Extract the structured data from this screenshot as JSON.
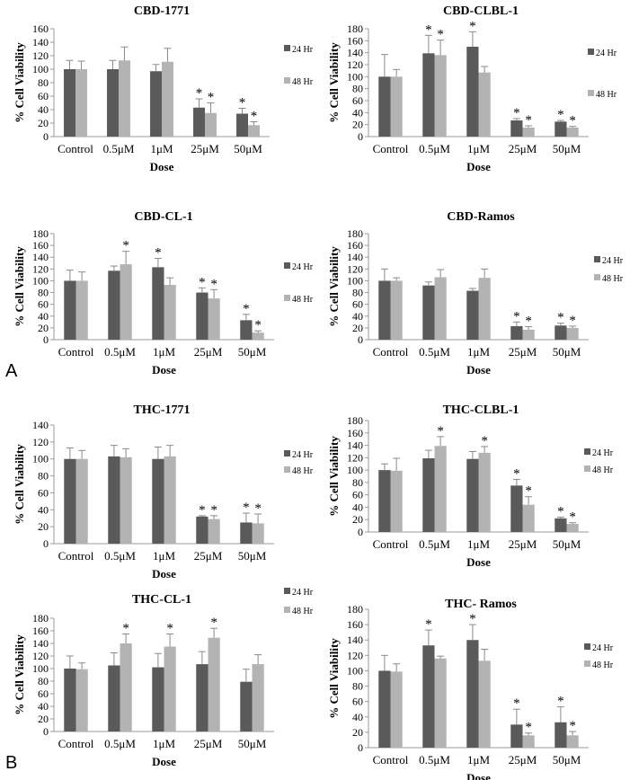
{
  "panels": {
    "a": "A",
    "b": "B"
  },
  "colors": {
    "hr24": "#5a5a5a",
    "hr48": "#b3b3b3",
    "axis": "#9a9a9a",
    "error": "#8a8a8a"
  },
  "chart_data": [
    {
      "type": "bar",
      "title": "CBD-1771",
      "categories": [
        "Control",
        "0.5μM",
        "1μM",
        "25μM",
        "50μM"
      ],
      "ylim": [
        0,
        160
      ],
      "yticks": [
        0,
        20,
        40,
        60,
        80,
        100,
        120,
        140,
        160
      ],
      "xlabel": "Dose",
      "ylabel": "% Cell Viability",
      "legend_position": "right",
      "series": [
        {
          "name": "24 Hr",
          "values": [
            100,
            100,
            97,
            43,
            34
          ],
          "errors": [
            13,
            13,
            10,
            13,
            8
          ],
          "significant": [
            false,
            false,
            false,
            true,
            true
          ]
        },
        {
          "name": "48 Hr",
          "values": [
            100,
            113,
            111,
            35,
            17
          ],
          "errors": [
            12,
            20,
            20,
            15,
            5
          ],
          "significant": [
            false,
            false,
            false,
            true,
            true
          ]
        }
      ]
    },
    {
      "type": "bar",
      "title": "CBD-CLBL-1",
      "categories": [
        "Control",
        "0.5μM",
        "1μM",
        "25μM",
        "50μM"
      ],
      "ylim": [
        0,
        180
      ],
      "yticks": [
        0,
        20,
        40,
        60,
        80,
        100,
        120,
        140,
        160,
        180
      ],
      "xlabel": "Dose",
      "ylabel": "% Cell Viability",
      "legend_position": "right",
      "series": [
        {
          "name": "24 Hr",
          "values": [
            100,
            139,
            150,
            27,
            25
          ],
          "errors": [
            37,
            30,
            25,
            3,
            2
          ],
          "significant": [
            false,
            true,
            true,
            true,
            true
          ]
        },
        {
          "name": "48 Hr",
          "values": [
            100,
            136,
            107,
            15,
            15
          ],
          "errors": [
            12,
            25,
            10,
            3,
            2
          ],
          "significant": [
            false,
            true,
            false,
            true,
            true
          ]
        }
      ]
    },
    {
      "type": "bar",
      "title": "CBD-CL-1",
      "categories": [
        "Control",
        "0.5μM",
        "1μM",
        "25μM",
        "50μM"
      ],
      "ylim": [
        0,
        180
      ],
      "yticks": [
        0,
        20,
        40,
        60,
        80,
        100,
        120,
        140,
        160,
        180
      ],
      "xlabel": "Dose",
      "ylabel": "% Cell Viability",
      "legend_position": "right",
      "series": [
        {
          "name": "24 Hr",
          "values": [
            100,
            117,
            123,
            80,
            33
          ],
          "errors": [
            18,
            8,
            15,
            8,
            10
          ],
          "significant": [
            false,
            false,
            true,
            true,
            true
          ]
        },
        {
          "name": "48 Hr",
          "values": [
            100,
            128,
            93,
            70,
            12
          ],
          "errors": [
            15,
            22,
            12,
            15,
            3
          ],
          "significant": [
            false,
            true,
            false,
            true,
            true
          ]
        }
      ]
    },
    {
      "type": "bar",
      "title": "CBD-Ramos",
      "categories": [
        "Control",
        "0.5μM",
        "1μM",
        "25μM",
        "50μM"
      ],
      "ylim": [
        0,
        180
      ],
      "yticks": [
        0,
        20,
        40,
        60,
        80,
        100,
        120,
        140,
        160,
        180
      ],
      "xlabel": "Dose",
      "ylabel": "% Cell Viability",
      "legend_position": "right",
      "series": [
        {
          "name": "24 Hr",
          "values": [
            100,
            92,
            83,
            23,
            24
          ],
          "errors": [
            20,
            6,
            4,
            7,
            4
          ],
          "significant": [
            false,
            false,
            false,
            true,
            true
          ]
        },
        {
          "name": "48 Hr",
          "values": [
            100,
            106,
            105,
            17,
            20
          ],
          "errors": [
            5,
            13,
            15,
            5,
            3
          ],
          "significant": [
            false,
            false,
            false,
            true,
            true
          ]
        }
      ]
    },
    {
      "type": "bar",
      "title": "THC-1771",
      "categories": [
        "Control",
        "0.5μM",
        "1μM",
        "25μM",
        "50μM"
      ],
      "ylim": [
        0,
        140
      ],
      "yticks": [
        0,
        20,
        40,
        60,
        80,
        100,
        120,
        140
      ],
      "xlabel": "Dose",
      "ylabel": "% Cell Viability",
      "legend_position": "right",
      "series": [
        {
          "name": "24 Hr",
          "values": [
            100,
            103,
            100,
            32,
            25
          ],
          "errors": [
            13,
            13,
            14,
            1,
            11
          ],
          "significant": [
            false,
            false,
            false,
            true,
            true
          ]
        },
        {
          "name": "48 Hr",
          "values": [
            100,
            102,
            103,
            29,
            24
          ],
          "errors": [
            10,
            10,
            13,
            4,
            11
          ],
          "significant": [
            false,
            false,
            false,
            true,
            true
          ]
        }
      ]
    },
    {
      "type": "bar",
      "title": "THC-CLBL-1",
      "categories": [
        "Control",
        "0.5μM",
        "1μM",
        "25μM",
        "50μM"
      ],
      "ylim": [
        0,
        180
      ],
      "yticks": [
        0,
        20,
        40,
        60,
        80,
        100,
        120,
        140,
        160,
        180
      ],
      "xlabel": "Dose",
      "ylabel": "% Cell Viability",
      "legend_position": "right",
      "series": [
        {
          "name": "24 Hr",
          "values": [
            100,
            119,
            118,
            75,
            22
          ],
          "errors": [
            10,
            13,
            12,
            10,
            2
          ],
          "significant": [
            false,
            false,
            false,
            true,
            true
          ]
        },
        {
          "name": "48 Hr",
          "values": [
            99,
            139,
            128,
            44,
            13
          ],
          "errors": [
            20,
            15,
            10,
            13,
            2
          ],
          "significant": [
            false,
            true,
            true,
            true,
            true
          ]
        }
      ]
    },
    {
      "type": "bar",
      "title": "THC-CL-1",
      "categories": [
        "Control",
        "0.5μM",
        "1μM",
        "25μM",
        "50μM"
      ],
      "ylim": [
        0,
        180
      ],
      "yticks": [
        0,
        20,
        40,
        60,
        80,
        100,
        120,
        140,
        160,
        180
      ],
      "xlabel": "Dose",
      "ylabel": "% Cell Viability",
      "legend_position": "right",
      "series": [
        {
          "name": "24 Hr",
          "values": [
            100,
            105,
            102,
            107,
            79
          ],
          "errors": [
            20,
            20,
            22,
            20,
            20
          ],
          "significant": [
            false,
            false,
            false,
            false,
            false
          ]
        },
        {
          "name": "48 Hr",
          "values": [
            99,
            140,
            135,
            149,
            107
          ],
          "errors": [
            10,
            15,
            20,
            15,
            15
          ],
          "significant": [
            false,
            true,
            true,
            true,
            false
          ]
        }
      ]
    },
    {
      "type": "bar",
      "title": "THC- Ramos",
      "categories": [
        "Control",
        "0.5μM",
        "1μM",
        "25μM",
        "50μM"
      ],
      "ylim": [
        0,
        180
      ],
      "yticks": [
        0,
        20,
        40,
        60,
        80,
        100,
        120,
        140,
        160,
        180
      ],
      "xlabel": "Dose",
      "ylabel": "% Cell Viability",
      "legend_position": "right",
      "series": [
        {
          "name": "24 Hr",
          "values": [
            100,
            133,
            140,
            30,
            33
          ],
          "errors": [
            20,
            20,
            20,
            20,
            20
          ],
          "significant": [
            false,
            true,
            true,
            true,
            true
          ]
        },
        {
          "name": "48 Hr",
          "values": [
            99,
            116,
            113,
            16,
            16
          ],
          "errors": [
            10,
            3,
            15,
            3,
            5
          ],
          "significant": [
            false,
            false,
            false,
            true,
            true
          ]
        }
      ]
    }
  ]
}
